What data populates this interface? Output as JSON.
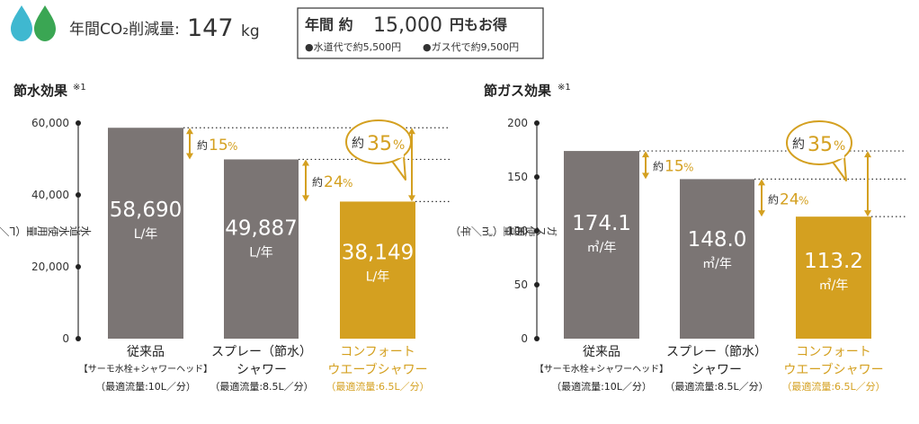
{
  "header": {
    "co2_label": "年間CO₂削減量:",
    "co2_value": "147",
    "co2_unit": "kg",
    "savings_title_prefix": "年間 約",
    "savings_amount": "15,000",
    "savings_suffix": "円もお得",
    "water_saving_note": "●水道代で約5,500円",
    "gas_saving_note": "●ガス代で約9,500円",
    "colors": {
      "drop_blue": "#3fb8d0",
      "drop_green": "#3aa653"
    }
  },
  "chart_data": [
    {
      "type": "bar",
      "title": "節水効果",
      "title_note": "※1",
      "ylabel": "水道水使用量（L／年）",
      "ylim": [
        0,
        60000
      ],
      "yticks": [
        "0",
        "20,000",
        "40,000",
        "60,000"
      ],
      "ytick_values": [
        0,
        20000,
        40000,
        60000
      ],
      "categories": [
        {
          "name": "従来品",
          "sub1": "【サーモ水栓+シャワーヘッド】",
          "sub2": "（最適流量:10L／分）"
        },
        {
          "name": "スプレー（節水）",
          "sub1": "シャワー",
          "sub2": "（最適流量:8.5L／分）"
        },
        {
          "name": "コンフォート",
          "sub1": "ウエーブシャワー",
          "sub2": "（最適流量:6.5L／分）"
        }
      ],
      "values": [
        58690,
        49887,
        38149
      ],
      "value_labels": [
        "58,690",
        "49,887",
        "38,149"
      ],
      "unit_label": "L/年",
      "bar_colors": [
        "#7b7574",
        "#7b7574",
        "#d4a020"
      ],
      "reductions": [
        {
          "prefix": "約",
          "value": "15",
          "unit": "%"
        },
        {
          "prefix": "約",
          "value": "24",
          "unit": "%"
        },
        {
          "prefix": "約",
          "value": "35",
          "unit": "%"
        }
      ]
    },
    {
      "type": "bar",
      "title": "節ガス効果",
      "title_note": "※1",
      "ylabel": "ガス使用量（㎥／年）",
      "ylim": [
        0,
        200
      ],
      "yticks": [
        "0",
        "50",
        "100",
        "150",
        "200"
      ],
      "ytick_values": [
        0,
        50,
        100,
        150,
        200
      ],
      "categories": [
        {
          "name": "従来品",
          "sub1": "【サーモ水栓+シャワーヘッド】",
          "sub2": "（最適流量:10L／分）"
        },
        {
          "name": "スプレー（節水）",
          "sub1": "シャワー",
          "sub2": "（最適流量:8.5L／分）"
        },
        {
          "name": "コンフォート",
          "sub1": "ウエーブシャワー",
          "sub2": "（最適流量:6.5L／分）"
        }
      ],
      "values": [
        174.1,
        148.0,
        113.2
      ],
      "value_labels": [
        "174.1",
        "148.0",
        "113.2"
      ],
      "unit_label": "㎥/年",
      "bar_colors": [
        "#7b7574",
        "#7b7574",
        "#d4a020"
      ],
      "reductions": [
        {
          "prefix": "約",
          "value": "15",
          "unit": "%"
        },
        {
          "prefix": "約",
          "value": "24",
          "unit": "%"
        },
        {
          "prefix": "約",
          "value": "35",
          "unit": "%"
        }
      ]
    }
  ],
  "colors": {
    "accent": "#d4a020",
    "bar_gray": "#7b7574",
    "text": "#333333"
  }
}
